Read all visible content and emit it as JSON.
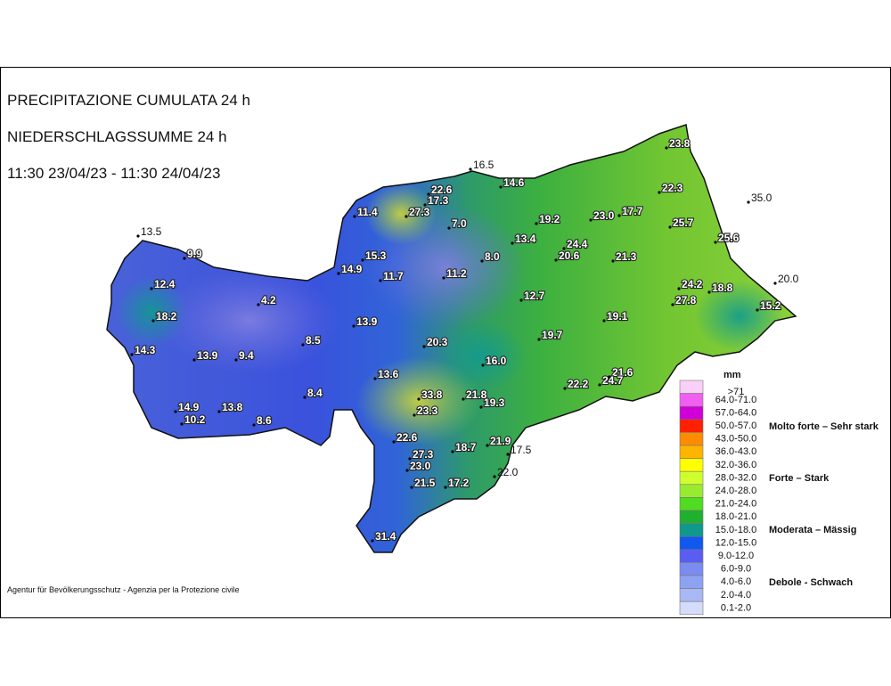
{
  "header": {
    "title_it": "PRECIPITAZIONE CUMULATA 24 h",
    "title_de": "NIEDERSCHLAGSSUMME 24 h",
    "period": "11:30 23/04/23 - 11:30 24/04/23"
  },
  "credit": "Agentur für Bevölkerungsschutz - Agenzia per la Protezione civile",
  "stations": [
    "23.8",
    "16.5",
    "14.6",
    "22.6",
    "17.3",
    "22.3",
    "35.0",
    "11.4",
    "27.3",
    "19.2",
    "23.0",
    "17.7",
    "7.0",
    "25.7",
    "13.5",
    "13.4",
    "24.4",
    "25.6",
    "9.9",
    "15.3",
    "20.6",
    "8.0",
    "21.3",
    "14.9",
    "11.7",
    "11.2",
    "20.0",
    "12.4",
    "24.2",
    "18.8",
    "12.7",
    "4.2",
    "27.8",
    "15.2",
    "18.2",
    "19.1",
    "13.9",
    "8.5",
    "20.3",
    "19.7",
    "14.3",
    "13.9",
    "9.4",
    "16.0",
    "13.6",
    "21.6",
    "22.2",
    "24.7",
    "33.8",
    "8.4",
    "21.8",
    "19.3",
    "23.3",
    "14.9",
    "13.8",
    "10.2",
    "8.6",
    "22.6",
    "21.9",
    "18.7",
    "17.5",
    "27.3",
    "23.0",
    "22.0",
    "21.5",
    "17.2",
    "31.4"
  ],
  "legend": {
    "unit": "mm",
    "items": [
      {
        "label": ">71",
        "color": "#fbd0f8"
      },
      {
        "label": "64.0-71.0",
        "color": "#f060f0"
      },
      {
        "label": "57.0-64.0",
        "color": "#d000d8"
      },
      {
        "label": "50.0-57.0",
        "color": "#ff2000"
      },
      {
        "label": "43.0-50.0",
        "color": "#ff8c00"
      },
      {
        "label": "36.0-43.0",
        "color": "#ffb400"
      },
      {
        "label": "32.0-36.0",
        "color": "#ffff00"
      },
      {
        "label": "28.0-32.0",
        "color": "#d0ff30"
      },
      {
        "label": "24.0-28.0",
        "color": "#98ec30"
      },
      {
        "label": "21.0-24.0",
        "color": "#50dc20"
      },
      {
        "label": "18.0-21.0",
        "color": "#20b030"
      },
      {
        "label": "15.0-18.0",
        "color": "#10988c"
      },
      {
        "label": "12.0-15.0",
        "color": "#1058f0"
      },
      {
        "label": "9.0-12.0",
        "color": "#5a5ef0"
      },
      {
        "label": "6.0-9.0",
        "color": "#7b8cf0"
      },
      {
        "label": "4.0-6.0",
        "color": "#8ea2f2"
      },
      {
        "label": "2.0-4.0",
        "color": "#a8b8f4"
      },
      {
        "label": "0.1-2.0",
        "color": "#d4dcfa"
      }
    ],
    "classes": [
      "Molto forte – Sehr stark",
      "Forte – Stark",
      "Moderata – Mässig",
      "Debole - Schwach"
    ]
  }
}
